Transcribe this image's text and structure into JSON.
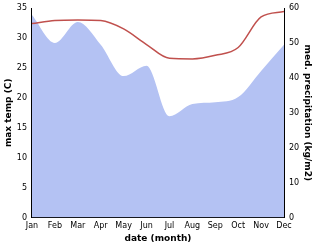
{
  "chart_data": {
    "type": "line",
    "categories": [
      "Jan",
      "Feb",
      "Mar",
      "Apr",
      "May",
      "Jun",
      "Jul",
      "Aug",
      "Sep",
      "Oct",
      "Nov",
      "Dec"
    ],
    "xlabel": "date (month)",
    "ylabel": "max temp (C)",
    "y2label": "med. precipitation (kg/m2)",
    "ylim": [
      0,
      35
    ],
    "yticks": [
      0,
      5,
      10,
      15,
      20,
      25,
      30,
      35
    ],
    "y2lim": [
      0,
      60
    ],
    "y2ticks": [
      0,
      10,
      20,
      30,
      40,
      50,
      60
    ],
    "grid": false,
    "series": [
      {
        "name": "med. precipitation",
        "type": "area",
        "axis": "y2",
        "color": "#b4c2f3",
        "values": [
          58,
          50,
          56,
          49.5,
          40.5,
          43.5,
          29,
          32.5,
          33,
          34.5,
          42,
          49.5
        ]
      },
      {
        "name": "max temp",
        "type": "line",
        "axis": "y",
        "color": "#c0504d",
        "values": [
          32.4,
          32.9,
          33,
          32.9,
          31.5,
          28.9,
          26.6,
          26.5,
          27.1,
          28.4,
          33.5,
          34.4
        ]
      }
    ]
  }
}
